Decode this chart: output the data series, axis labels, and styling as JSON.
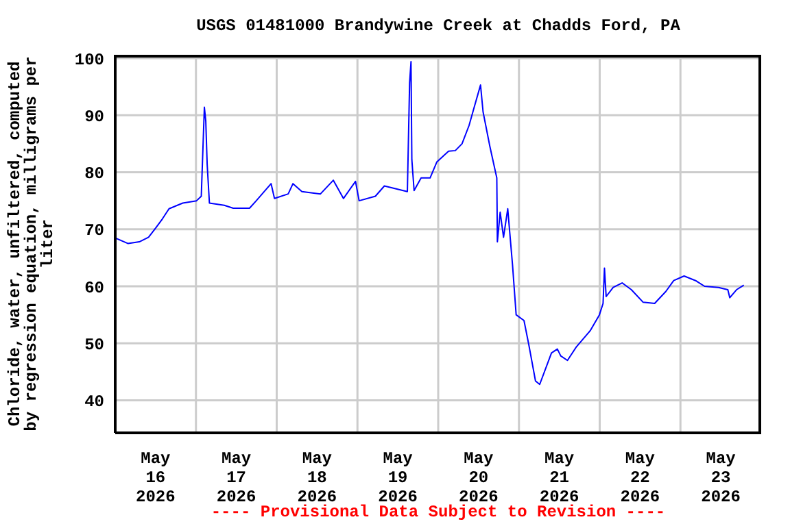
{
  "chart_data": {
    "type": "line",
    "title": "USGS 01481000 Brandywine Creek at Chadds Ford, PA",
    "ylabel": "Chloride, water, unfiltered, computed by regression equation, milligrams per liter",
    "annotations": [
      "---- Provisional Data Subject to Revision ----"
    ],
    "x": [
      "2026-05-16T00:20",
      "2026-05-16T03:50",
      "2026-05-16T07:10",
      "2026-05-16T09:55",
      "2026-05-16T12:00",
      "2026-05-16T14:00",
      "2026-05-16T16:00",
      "2026-05-16T20:05",
      "2026-05-17T00:10",
      "2026-05-17T01:35",
      "2026-05-17T02:30",
      "2026-05-17T02:55",
      "2026-05-17T03:20",
      "2026-05-17T04:00",
      "2026-05-17T08:25",
      "2026-05-17T11:05",
      "2026-05-17T15:55",
      "2026-05-17T17:55",
      "2026-05-17T22:20",
      "2026-05-17T23:20",
      "2026-05-18T03:25",
      "2026-05-18T04:50",
      "2026-05-18T07:30",
      "2026-05-18T13:00",
      "2026-05-18T16:50",
      "2026-05-18T19:50",
      "2026-05-18T23:25",
      "2026-05-19T00:30",
      "2026-05-19T05:20",
      "2026-05-19T08:00",
      "2026-05-19T14:50",
      "2026-05-19T15:30",
      "2026-05-19T15:55",
      "2026-05-19T16:10",
      "2026-05-19T16:50",
      "2026-05-19T18:55",
      "2026-05-19T21:35",
      "2026-05-19T23:35",
      "2026-05-20T03:05",
      "2026-05-20T05:05",
      "2026-05-20T07:05",
      "2026-05-20T09:10",
      "2026-05-20T10:30",
      "2026-05-20T12:35",
      "2026-05-20T13:20",
      "2026-05-20T15:20",
      "2026-05-20T17:25",
      "2026-05-20T17:35",
      "2026-05-20T18:25",
      "2026-05-20T19:25",
      "2026-05-20T20:40",
      "2026-05-20T22:05",
      "2026-05-20T23:10",
      "2026-05-21T01:30",
      "2026-05-21T02:55",
      "2026-05-21T04:55",
      "2026-05-21T06:10",
      "2026-05-21T09:40",
      "2026-05-21T11:25",
      "2026-05-21T12:25",
      "2026-05-21T14:25",
      "2026-05-21T17:05",
      "2026-05-21T21:10",
      "2026-05-21T23:55",
      "2026-05-22T01:00",
      "2026-05-22T01:25",
      "2026-05-22T01:55",
      "2026-05-22T04:00",
      "2026-05-22T06:40",
      "2026-05-22T09:25",
      "2026-05-22T12:55",
      "2026-05-22T16:20",
      "2026-05-22T19:40",
      "2026-05-22T22:00",
      "2026-05-23T01:05",
      "2026-05-23T04:30",
      "2026-05-23T07:10",
      "2026-05-23T11:20",
      "2026-05-23T14:05",
      "2026-05-23T14:40",
      "2026-05-23T16:40",
      "2026-05-23T18:50"
    ],
    "series": [
      {
        "color": "#0000ff",
        "values": [
          68.4,
          67.5,
          67.8,
          68.6,
          70.2,
          71.8,
          73.6,
          74.6,
          75.0,
          75.8,
          91.4,
          89.0,
          81.4,
          74.6,
          74.2,
          73.7,
          73.7,
          75.0,
          78.0,
          75.4,
          76.2,
          78.0,
          76.6,
          76.2,
          78.6,
          75.4,
          78.4,
          75.0,
          75.8,
          77.6,
          76.6,
          95.7,
          99.4,
          82.2,
          76.8,
          79.0,
          79.0,
          81.8,
          83.7,
          83.8,
          85.0,
          88.2,
          91.0,
          95.3,
          90.6,
          84.6,
          79.0,
          67.8,
          73.0,
          68.6,
          73.6,
          63.8,
          55.0,
          54.0,
          49.8,
          43.4,
          42.8,
          48.3,
          49.0,
          47.8,
          47.0,
          49.4,
          52.2,
          55.0,
          57.0,
          63.2,
          58.2,
          59.8,
          60.6,
          59.4,
          57.2,
          57.0,
          59.1,
          61.0,
          61.8,
          61.0,
          60.0,
          59.8,
          59.4,
          58.0,
          59.4,
          60.2
        ]
      }
    ],
    "xlim": [
      "2026-05-16",
      "2026-05-24"
    ],
    "xticks": [
      {
        "value": "2026-05-16T12:00",
        "label": "May\n16\n2026"
      },
      {
        "value": "2026-05-17T12:00",
        "label": "May\n17\n2026"
      },
      {
        "value": "2026-05-18T12:00",
        "label": "May\n18\n2026"
      },
      {
        "value": "2026-05-19T12:00",
        "label": "May\n19\n2026"
      },
      {
        "value": "2026-05-20T12:00",
        "label": "May\n20\n2026"
      },
      {
        "value": "2026-05-21T12:00",
        "label": "May\n21\n2026"
      },
      {
        "value": "2026-05-22T12:00",
        "label": "May\n22\n2026"
      },
      {
        "value": "2026-05-23T12:00",
        "label": "May\n23\n2026"
      },
      {
        "value": "2026-05-17",
        "label": null
      },
      {
        "value": "2026-05-18",
        "label": null
      },
      {
        "value": "2026-05-19",
        "label": null
      },
      {
        "value": "2026-05-20",
        "label": null
      },
      {
        "value": "2026-05-21",
        "label": null
      },
      {
        "value": "2026-05-22",
        "label": null
      },
      {
        "value": "2026-05-23",
        "label": null
      }
    ],
    "ylim": [
      34.3,
      100.6
    ],
    "yticks": [
      40,
      50,
      60,
      70,
      80,
      90,
      100
    ],
    "grid": true
  }
}
